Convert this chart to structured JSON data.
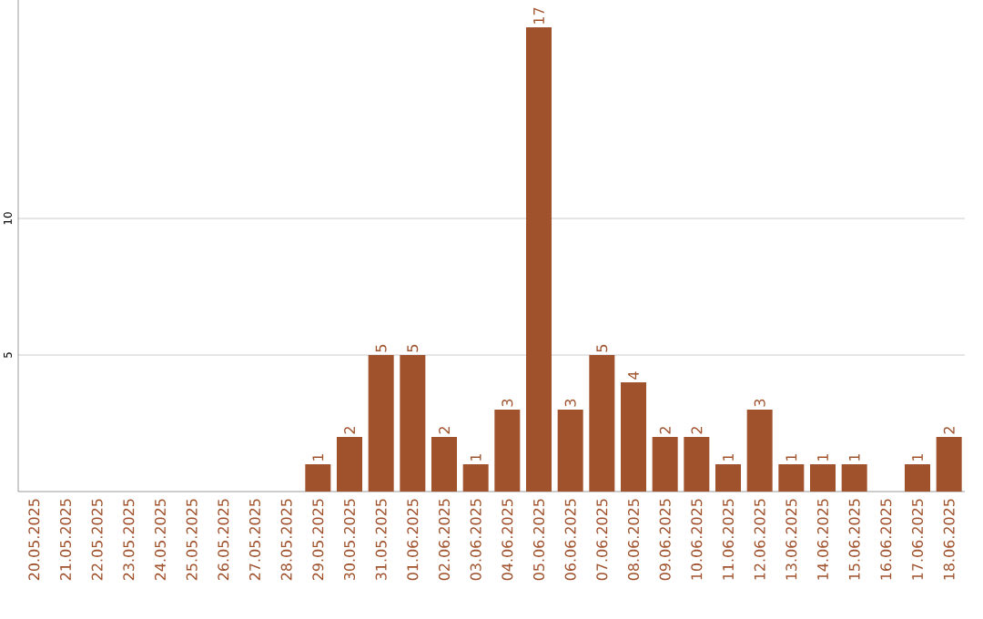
{
  "chart_data": {
    "type": "bar",
    "categories": [
      "20.05.2025",
      "21.05.2025",
      "22.05.2025",
      "23.05.2025",
      "24.05.2025",
      "25.05.2025",
      "26.05.2025",
      "27.05.2025",
      "28.05.2025",
      "29.05.2025",
      "30.05.2025",
      "31.05.2025",
      "01.06.2025",
      "02.06.2025",
      "03.06.2025",
      "04.06.2025",
      "05.06.2025",
      "06.06.2025",
      "07.06.2025",
      "08.06.2025",
      "09.06.2025",
      "10.06.2025",
      "11.06.2025",
      "12.06.2025",
      "13.06.2025",
      "14.06.2025",
      "15.06.2025",
      "16.06.2025",
      "17.06.2025",
      "18.06.2025"
    ],
    "values": [
      0,
      0,
      0,
      0,
      0,
      0,
      0,
      0,
      0,
      1,
      2,
      5,
      5,
      2,
      1,
      3,
      17,
      3,
      5,
      4,
      2,
      2,
      1,
      3,
      1,
      1,
      1,
      0,
      1,
      2
    ],
    "value_labels": [
      null,
      null,
      null,
      null,
      null,
      null,
      null,
      null,
      null,
      "1",
      "2",
      "5",
      "5",
      "2",
      "1",
      "3",
      "17",
      "3",
      "5",
      "4",
      "2",
      "2",
      "1",
      "3",
      "1",
      "1",
      "1",
      null,
      "1",
      "2"
    ],
    "color": "#a0522d",
    "ylim": [
      0,
      18
    ],
    "yticks": [
      5,
      10
    ],
    "grid": "y"
  }
}
